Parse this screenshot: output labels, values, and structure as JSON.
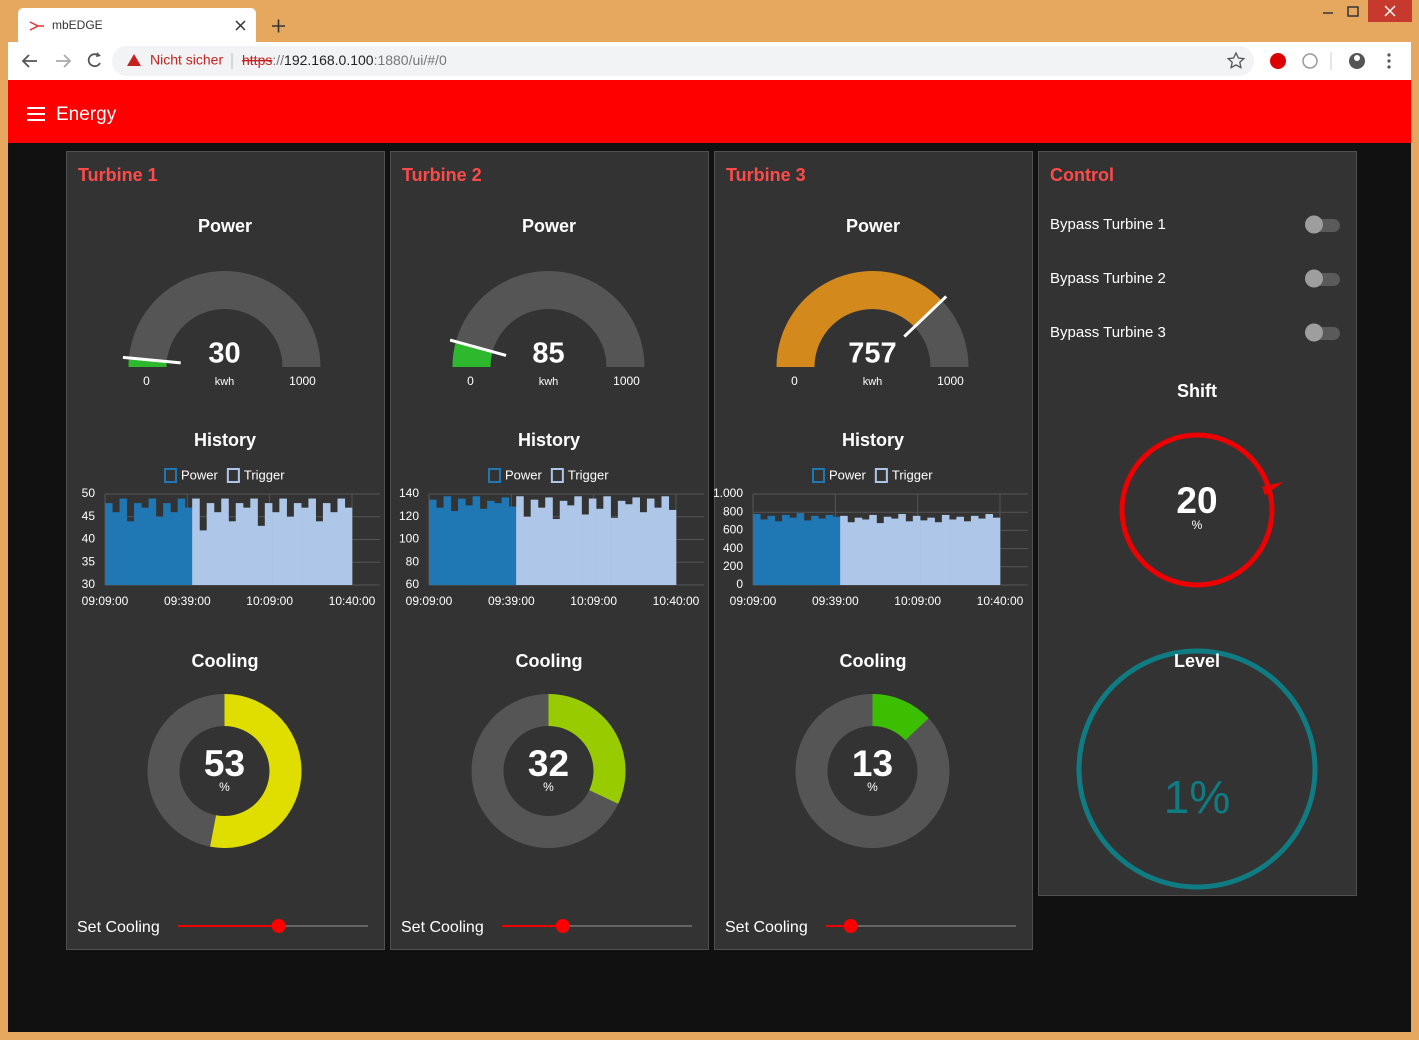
{
  "browser": {
    "tab_title": "mbEDGE",
    "security_label": "Nicht sicher",
    "url": {
      "scheme": "https",
      "separator": "://",
      "host": "192.168.0.100",
      "path": ":1880/ui/#/0"
    }
  },
  "header": {
    "title": "Energy"
  },
  "turbines": [
    {
      "title": "Turbine 1",
      "power": {
        "label": "Power",
        "type": "gauge",
        "value": 30,
        "unit": "kwh",
        "min": 0,
        "max": 1000,
        "color": "#2db82d"
      },
      "history": {
        "label": "History",
        "type": "bar",
        "ylim": [
          30,
          50
        ],
        "yticks": [
          30,
          35,
          40,
          45,
          50
        ],
        "xticks": [
          "09:09:00",
          "09:39:00",
          "10:09:00",
          "10:40:00"
        ],
        "series": [
          {
            "name": "Power",
            "color": "#1f77b4",
            "values": [
              48,
              46,
              49,
              44,
              48,
              47,
              49,
              45,
              48,
              46,
              49,
              47
            ]
          },
          {
            "name": "Trigger",
            "color": "#aec7e8",
            "values": [
              49,
              42,
              48,
              46,
              49,
              44,
              48,
              47,
              49,
              43,
              48,
              46,
              49,
              45,
              48,
              47,
              49,
              44,
              48,
              46,
              49,
              47
            ]
          }
        ]
      },
      "cooling": {
        "label": "Cooling",
        "type": "donut",
        "value": 53,
        "unit": "%",
        "color": "#e0dd00"
      },
      "set_cooling": {
        "label": "Set Cooling"
      }
    },
    {
      "title": "Turbine 2",
      "power": {
        "label": "Power",
        "type": "gauge",
        "value": 85,
        "unit": "kwh",
        "min": 0,
        "max": 1000,
        "color": "#2db82d"
      },
      "history": {
        "label": "History",
        "type": "bar",
        "ylim": [
          60,
          140
        ],
        "yticks": [
          60,
          80,
          100,
          120,
          140
        ],
        "xticks": [
          "09:09:00",
          "09:39:00",
          "10:09:00",
          "10:40:00"
        ],
        "series": [
          {
            "name": "Power",
            "color": "#1f77b4",
            "values": [
              135,
              128,
              138,
              125,
              136,
              130,
              138,
              127,
              134,
              132,
              137,
              129
            ]
          },
          {
            "name": "Trigger",
            "color": "#aec7e8",
            "values": [
              138,
              120,
              135,
              128,
              137,
              118,
              134,
              130,
              138,
              122,
              136,
              127,
              138,
              119,
              134,
              131,
              137,
              124,
              136,
              128,
              138,
              126
            ]
          }
        ]
      },
      "cooling": {
        "label": "Cooling",
        "type": "donut",
        "value": 32,
        "unit": "%",
        "color": "#99cc00"
      },
      "set_cooling": {
        "label": "Set Cooling"
      }
    },
    {
      "title": "Turbine 3",
      "power": {
        "label": "Power",
        "type": "gauge",
        "value": 757,
        "unit": "kwh",
        "min": 0,
        "max": 1000,
        "color": "#d4891c"
      },
      "history": {
        "label": "History",
        "type": "bar",
        "ylim": [
          0,
          1000
        ],
        "yticks": [
          0,
          200,
          400,
          600,
          800,
          {
            "value": 1000,
            "label": "1.000"
          }
        ],
        "xticks": [
          "09:09:00",
          "09:39:00",
          "10:09:00",
          "10:40:00"
        ],
        "series": [
          {
            "name": "Power",
            "color": "#1f77b4",
            "values": [
              780,
              720,
              760,
              700,
              770,
              740,
              790,
              710,
              760,
              730,
              770,
              750
            ]
          },
          {
            "name": "Trigger",
            "color": "#aec7e8",
            "values": [
              760,
              690,
              740,
              720,
              770,
              680,
              750,
              730,
              780,
              700,
              760,
              710,
              740,
              690,
              770,
              720,
              750,
              700,
              760,
              730,
              780,
              740
            ]
          }
        ]
      },
      "cooling": {
        "label": "Cooling",
        "type": "donut",
        "value": 13,
        "unit": "%",
        "color": "#3cbf00"
      },
      "set_cooling": {
        "label": "Set Cooling"
      }
    }
  ],
  "control": {
    "title": "Control",
    "toggles": [
      {
        "label": "Bypass Turbine 1",
        "on": false
      },
      {
        "label": "Bypass Turbine 2",
        "on": false
      },
      {
        "label": "Bypass Turbine 3",
        "on": false
      }
    ],
    "shift": {
      "label": "Shift",
      "value": 20,
      "unit": "%",
      "color": "#ee0000"
    },
    "level": {
      "label": "Level",
      "value": 1,
      "unit": "%",
      "color": "#0f7c84"
    }
  }
}
